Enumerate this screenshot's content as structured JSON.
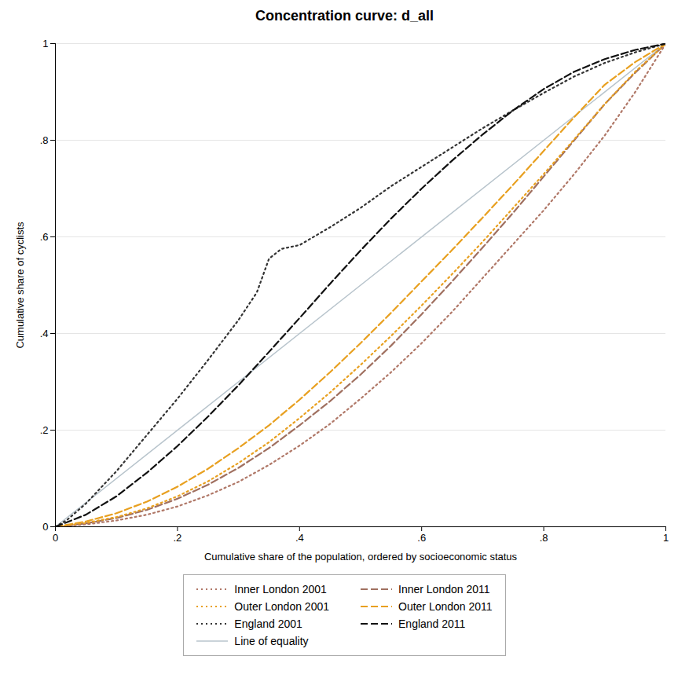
{
  "chart_data": {
    "type": "line",
    "title": "Concentration curve: d_all",
    "xlabel": "Cumulative share of the population, ordered by socioeconomic status",
    "ylabel": "Cumulative share of cyclists",
    "xlim": [
      0,
      1
    ],
    "ylim": [
      0,
      1
    ],
    "xticks": [
      0,
      {
        "value": 0.2,
        "label": ".2"
      },
      {
        "value": 0.4,
        "label": ".4"
      },
      {
        "value": 0.6,
        "label": ".6"
      },
      {
        "value": 0.8,
        "label": ".8"
      },
      1
    ],
    "yticks": [
      0,
      {
        "value": 0.2,
        "label": ".2"
      },
      {
        "value": 0.4,
        "label": ".4"
      },
      {
        "value": 0.6,
        "label": ".6"
      },
      {
        "value": 0.8,
        "label": ".8"
      },
      1
    ],
    "grid": true,
    "series": [
      {
        "name": "Inner London 2001",
        "color": "#b07868",
        "line_style": "dotted",
        "x": [
          0,
          0.05,
          0.1,
          0.15,
          0.2,
          0.25,
          0.3,
          0.35,
          0.4,
          0.45,
          0.5,
          0.55,
          0.6,
          0.65,
          0.7,
          0.75,
          0.8,
          0.85,
          0.9,
          0.95,
          1.0
        ],
        "values": [
          0,
          0.005,
          0.013,
          0.025,
          0.042,
          0.065,
          0.093,
          0.128,
          0.168,
          0.213,
          0.265,
          0.32,
          0.38,
          0.445,
          0.515,
          0.585,
          0.655,
          0.73,
          0.81,
          0.9,
          1.0
        ]
      },
      {
        "name": "Inner London 2011",
        "color": "#a07060",
        "line_style": "dashed",
        "x": [
          0,
          0.05,
          0.1,
          0.15,
          0.2,
          0.25,
          0.3,
          0.35,
          0.4,
          0.45,
          0.5,
          0.55,
          0.6,
          0.65,
          0.7,
          0.75,
          0.8,
          0.85,
          0.9,
          0.95,
          1.0
        ],
        "values": [
          0,
          0.007,
          0.018,
          0.035,
          0.058,
          0.087,
          0.122,
          0.163,
          0.21,
          0.26,
          0.315,
          0.375,
          0.44,
          0.508,
          0.578,
          0.65,
          0.725,
          0.8,
          0.875,
          0.94,
          1.0
        ]
      },
      {
        "name": "Outer London 2001",
        "color": "#E8A020",
        "line_style": "dotted",
        "x": [
          0,
          0.05,
          0.1,
          0.15,
          0.2,
          0.25,
          0.3,
          0.35,
          0.4,
          0.45,
          0.5,
          0.55,
          0.6,
          0.65,
          0.7,
          0.75,
          0.8,
          0.85,
          0.9,
          0.95,
          1.0
        ],
        "values": [
          0,
          0.008,
          0.02,
          0.038,
          0.063,
          0.094,
          0.132,
          0.175,
          0.225,
          0.278,
          0.335,
          0.395,
          0.458,
          0.523,
          0.59,
          0.66,
          0.73,
          0.802,
          0.875,
          0.942,
          1.0
        ]
      },
      {
        "name": "Outer London 2011",
        "color": "#E8A020",
        "line_style": "dashed",
        "x": [
          0,
          0.05,
          0.1,
          0.15,
          0.2,
          0.25,
          0.3,
          0.35,
          0.4,
          0.45,
          0.5,
          0.55,
          0.6,
          0.65,
          0.7,
          0.75,
          0.8,
          0.85,
          0.9,
          0.95,
          1.0
        ],
        "values": [
          0,
          0.011,
          0.028,
          0.052,
          0.083,
          0.12,
          0.163,
          0.21,
          0.263,
          0.32,
          0.38,
          0.443,
          0.508,
          0.573,
          0.64,
          0.708,
          0.778,
          0.848,
          0.915,
          0.962,
          1.0
        ]
      },
      {
        "name": "England 2001",
        "color": "#333333",
        "line_style": "dotted",
        "x": [
          0,
          0.02,
          0.05,
          0.1,
          0.15,
          0.2,
          0.25,
          0.3,
          0.33,
          0.35,
          0.37,
          0.4,
          0.45,
          0.5,
          0.55,
          0.6,
          0.65,
          0.7,
          0.75,
          0.8,
          0.85,
          0.9,
          0.95,
          1.0
        ],
        "values": [
          0,
          0.015,
          0.048,
          0.115,
          0.19,
          0.265,
          0.345,
          0.428,
          0.485,
          0.555,
          0.575,
          0.583,
          0.62,
          0.66,
          0.705,
          0.745,
          0.785,
          0.825,
          0.862,
          0.898,
          0.932,
          0.96,
          0.982,
          1.0
        ]
      },
      {
        "name": "England 2011",
        "color": "#111111",
        "line_style": "dashed",
        "x": [
          0,
          0.05,
          0.1,
          0.15,
          0.2,
          0.25,
          0.3,
          0.35,
          0.4,
          0.45,
          0.5,
          0.55,
          0.6,
          0.65,
          0.7,
          0.75,
          0.8,
          0.85,
          0.9,
          0.95,
          1.0
        ],
        "values": [
          0,
          0.025,
          0.063,
          0.112,
          0.167,
          0.228,
          0.293,
          0.362,
          0.432,
          0.503,
          0.572,
          0.638,
          0.7,
          0.758,
          0.812,
          0.862,
          0.906,
          0.942,
          0.968,
          0.987,
          1.0
        ]
      },
      {
        "name": "Line of equality",
        "color": "#b8c4cc",
        "line_style": "solid",
        "x": [
          0,
          1
        ],
        "values": [
          0,
          1
        ]
      }
    ]
  }
}
